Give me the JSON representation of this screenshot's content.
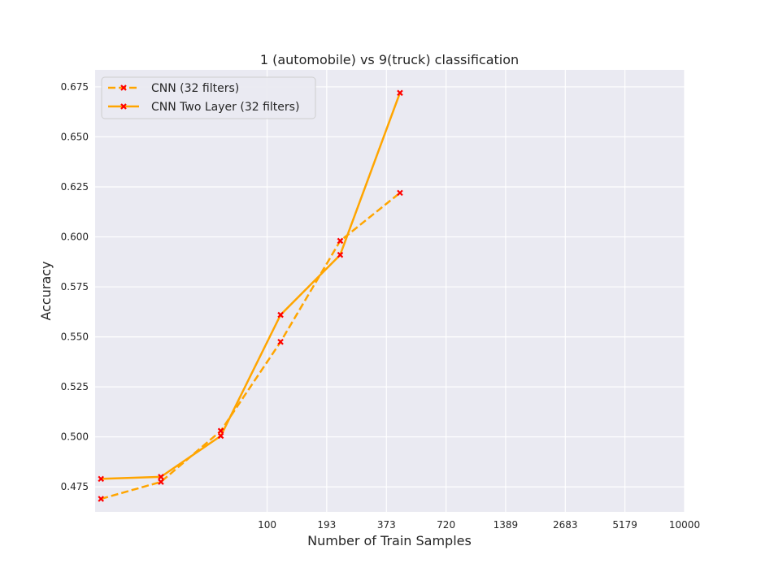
{
  "chart_data": {
    "type": "line",
    "title": "1 (automobile) vs 9(truck) classification",
    "xlabel": "Number of Train Samples",
    "ylabel": "Accuracy",
    "x_scale": "log",
    "xlim": [
      15,
      10000
    ],
    "ylim": [
      0.4625,
      0.6835
    ],
    "grid": true,
    "legend_position": "top-left",
    "x_ticks": [
      100,
      193,
      373,
      720,
      1389,
      2683,
      5179,
      10000
    ],
    "y_ticks": [
      0.475,
      0.5,
      0.525,
      0.55,
      0.575,
      0.6,
      0.625,
      0.65,
      0.675
    ],
    "y_tick_labels": [
      "0.475",
      "0.500",
      "0.525",
      "0.550",
      "0.575",
      "0.600",
      "0.625",
      "0.650",
      "0.675"
    ],
    "x": [
      16,
      31,
      60,
      116,
      224,
      433
    ],
    "series": [
      {
        "name": "CNN (32 filters)",
        "style": "dashed",
        "color": "#ffa500",
        "marker_color": "#ff0000",
        "values": [
          0.469,
          0.4775,
          0.503,
          0.5475,
          0.598,
          0.622
        ]
      },
      {
        "name": "CNN Two Layer (32 filters)",
        "style": "solid",
        "color": "#ffa500",
        "marker_color": "#ff0000",
        "values": [
          0.479,
          0.48,
          0.5005,
          0.561,
          0.591,
          0.672
        ]
      }
    ]
  }
}
